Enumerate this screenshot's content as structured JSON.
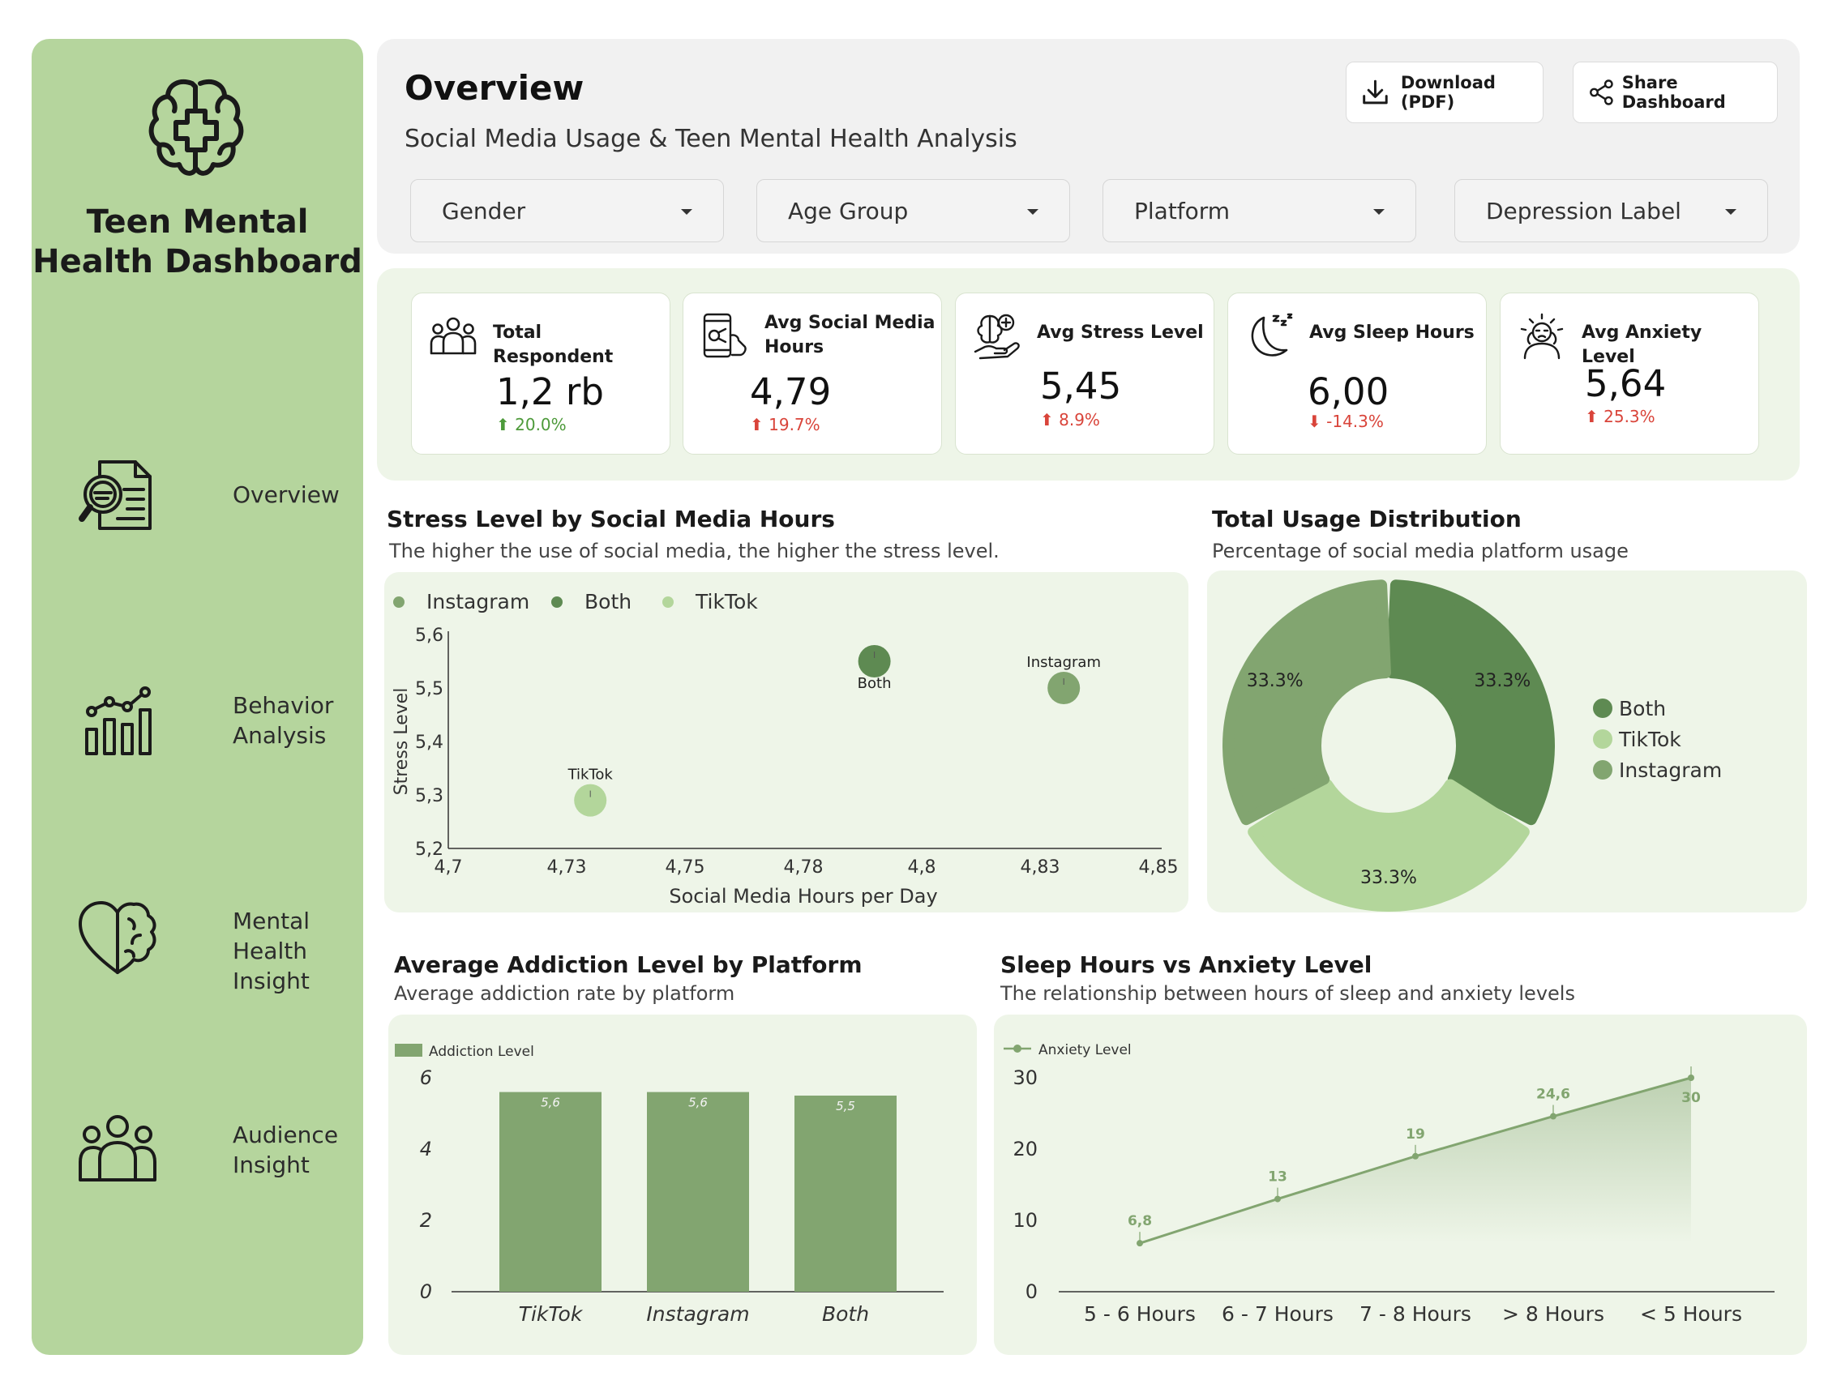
{
  "app": {
    "title": "Teen Mental Health Dashboard"
  },
  "nav": [
    {
      "label": "Overview",
      "icon": "document-search-icon"
    },
    {
      "label": "Behavior\nAnalysis",
      "icon": "bar-chart-icon"
    },
    {
      "label": "Mental Health\nInsight",
      "icon": "heart-brain-icon"
    },
    {
      "label": "Audience\nInsight",
      "icon": "people-icon"
    }
  ],
  "header": {
    "title": "Overview",
    "subtitle": "Social Media Usage & Teen Mental Health Analysis",
    "download_label": "Download (PDF)",
    "share_label": "Share Dashboard"
  },
  "filters": [
    {
      "label": "Gender"
    },
    {
      "label": "Age Group"
    },
    {
      "label": "Platform"
    },
    {
      "label": "Depression Label"
    }
  ],
  "kpis": [
    {
      "label": "Total Respondent",
      "value": "1,2 rb",
      "delta": "20.0%",
      "direction": "up",
      "tone": "#4d9a3a",
      "icon": "people-icon"
    },
    {
      "label": "Avg Social Media Hours",
      "value": "4,79",
      "delta": "19.7%",
      "direction": "up",
      "tone": "#d9443a",
      "icon": "phone-hand-icon"
    },
    {
      "label": "Avg Stress Level",
      "value": "5,45",
      "delta": "8.9%",
      "direction": "up",
      "tone": "#d9443a",
      "icon": "brain-hand-icon"
    },
    {
      "label": "Avg Sleep Hours",
      "value": "6,00",
      "delta": "-14.3%",
      "direction": "down",
      "tone": "#d9443a",
      "icon": "moon-sleep-icon"
    },
    {
      "label": "Avg Anxiety Level",
      "value": "5,64",
      "delta": "25.3%",
      "direction": "up",
      "tone": "#d9443a",
      "icon": "anxious-person-icon"
    }
  ],
  "cards": {
    "stress": {
      "title": "Stress Level by Social Media Hours",
      "subtitle": "The higher the use of social media, the higher the stress level."
    },
    "usage": {
      "title": "Total Usage Distribution",
      "subtitle": "Percentage of social media platform usage"
    },
    "addiction": {
      "title": "Average Addiction Level by Platform",
      "subtitle": "Average addiction rate by platform"
    },
    "sleep": {
      "title": "Sleep Hours vs Anxiety Level",
      "subtitle": "The relationship between hours of sleep and anxiety levels"
    }
  },
  "colors": {
    "dark_green": "#5e8a52",
    "mid_green": "#82a570",
    "light_green": "#b3d69b",
    "panel": "#eef5e8",
    "sidebar": "#b5d59d"
  },
  "chart_data": [
    {
      "id": "stress_scatter",
      "type": "scatter",
      "xlabel": "Social Media Hours per Day",
      "ylabel": "Stress Level",
      "xlim": [
        4.7,
        4.85
      ],
      "ylim": [
        5.2,
        5.6
      ],
      "x_ticks": [
        "4,7",
        "4,73",
        "4,75",
        "4,78",
        "4,8",
        "4,83",
        "4,85"
      ],
      "y_ticks": [
        "5,2",
        "5,3",
        "5,4",
        "5,5",
        "5,6"
      ],
      "legend": [
        "Instagram",
        "Both",
        "TikTok"
      ],
      "legend_placement": "top-left",
      "points": [
        {
          "name": "Instagram",
          "x": 4.83,
          "y": 5.5,
          "color": "#82a570"
        },
        {
          "name": "Both",
          "x": 4.79,
          "y": 5.55,
          "color": "#5e8a52"
        },
        {
          "name": "TikTok",
          "x": 4.73,
          "y": 5.29,
          "color": "#b3d69b"
        }
      ]
    },
    {
      "id": "usage_donut",
      "type": "pie",
      "legend_placement": "right",
      "slices": [
        {
          "name": "Both",
          "value": 33.3,
          "label": "33.3%",
          "color": "#5e8a52"
        },
        {
          "name": "TikTok",
          "value": 33.3,
          "label": "33.3%",
          "color": "#b3d69b"
        },
        {
          "name": "Instagram",
          "value": 33.3,
          "label": "33.3%",
          "color": "#82a570"
        }
      ]
    },
    {
      "id": "addiction_bar",
      "type": "bar",
      "legend": [
        "Addiction Level"
      ],
      "legend_placement": "top-left",
      "categories": [
        "TikTok",
        "Instagram",
        "Both"
      ],
      "values": [
        5.6,
        5.6,
        5.5
      ],
      "value_labels": [
        "5,6",
        "5,6",
        "5,5"
      ],
      "ylim": [
        0,
        6
      ],
      "y_ticks": [
        "0",
        "2",
        "4",
        "6"
      ],
      "color": "#82a570"
    },
    {
      "id": "sleep_line",
      "type": "area",
      "legend": [
        "Anxiety Level"
      ],
      "legend_placement": "top-left",
      "categories": [
        "5 - 6 Hours",
        "6 - 7 Hours",
        "7 - 8 Hours",
        "> 8 Hours",
        "< 5 Hours"
      ],
      "values": [
        6.8,
        13,
        19,
        24.6,
        30
      ],
      "value_labels": [
        "6,8",
        "13",
        "19",
        "24,6",
        "30"
      ],
      "ylim": [
        0,
        30
      ],
      "y_ticks": [
        "0",
        "10",
        "20",
        "30"
      ],
      "color": "#82a570"
    }
  ]
}
